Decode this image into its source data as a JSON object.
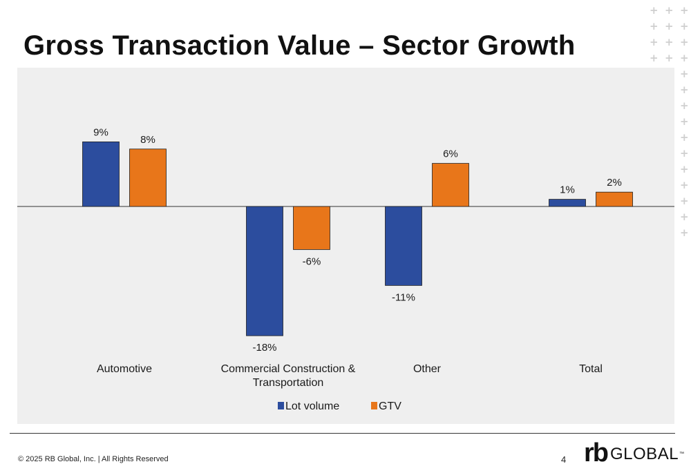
{
  "slide": {
    "title": "Gross Transaction Value – Sector Growth",
    "footer": "© 2025 RB Global, Inc. | All Rights Reserved",
    "page_number": "4",
    "logo": {
      "mark": "rb",
      "word": "GLOBAL",
      "tm": "™"
    }
  },
  "colors": {
    "lot_volume": "#2C4D9E",
    "gtv": "#E8761A",
    "panel": "#EFEFEF",
    "decoration": "#CFCFCF"
  },
  "chart_data": {
    "type": "bar",
    "categories": [
      "Automotive",
      "Commercial Construction & Transportation",
      "Other",
      "Total"
    ],
    "category_lines": [
      [
        "Automotive"
      ],
      [
        "Commercial Construction &",
        "Transportation"
      ],
      [
        "Other"
      ],
      [
        "Total"
      ]
    ],
    "series": [
      {
        "name": "Lot volume",
        "values": [
          9,
          -18,
          -11,
          1
        ],
        "labels": [
          "9%",
          "-18%",
          "-11%",
          "1%"
        ]
      },
      {
        "name": "GTV",
        "values": [
          8,
          -6,
          6,
          2
        ],
        "labels": [
          "8%",
          "-6%",
          "6%",
          "2%"
        ]
      }
    ],
    "unit": "%",
    "ylim": [
      -18,
      9
    ],
    "grid": false,
    "legend": "bottom"
  }
}
